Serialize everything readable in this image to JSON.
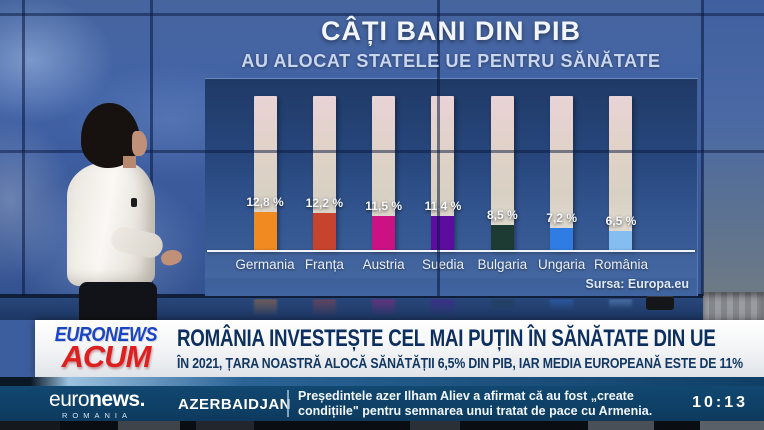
{
  "chart_data": {
    "type": "bar",
    "title": "CÂȚI BANI DIN PIB",
    "subtitle": "AU ALOCAT STATELE UE PENTRU SĂNĂTATE",
    "categories": [
      "Germania",
      "Franța",
      "Austria",
      "Suedia",
      "Bulgaria",
      "Ungaria",
      "România"
    ],
    "values": [
      12.8,
      12.2,
      11.5,
      11.4,
      8.5,
      7.2,
      6.5
    ],
    "value_labels": [
      "12,8 %",
      "12,2 %",
      "11,5 %",
      "11,4 %",
      "8,5 %",
      "7,2 %",
      "6,5 %"
    ],
    "bar_colors": [
      "#f08a21",
      "#c7432e",
      "#cc1183",
      "#5c0da0",
      "#1d3b33",
      "#2f7ce4",
      "#85bdf0"
    ],
    "ylabel": "",
    "xlabel": "",
    "grid": false,
    "legend": "none",
    "source": "Sursa: Europa.eu"
  },
  "lower_third": {
    "badge_top": "EURONEWS",
    "badge_bottom": "ACUM",
    "headline": "ROMÂNIA INVESTEȘTE CEL MAI PUȚIN ÎN SĂNĂTATE DIN UE",
    "subheadline": "ÎN 2021, ȚARA NOASTRĂ ALOCĂ SĂNĂTĂȚII 6,5% DIN PIB, IAR MEDIA EUROPEANĂ ESTE DE 11%"
  },
  "ticker": {
    "logo_prefix": "euro",
    "logo_suffix": "news.",
    "logo_sub": "ROMANIA",
    "category": "AZERBAIDJAN",
    "news_line1": "Președintele azer Ilham Aliev a afirmat că au fost  „create",
    "news_line2": "condițiile\" pentru semnarea unui tratat de pace cu Armenia.",
    "clock": "10:13"
  },
  "colors": {
    "badge_blue": "#1a45c4",
    "badge_red": "#dd1f1f",
    "headline_navy": "#0d2f5f",
    "ticker_bg": "#0f3f66",
    "wall_blue": "#3d5e9e"
  }
}
